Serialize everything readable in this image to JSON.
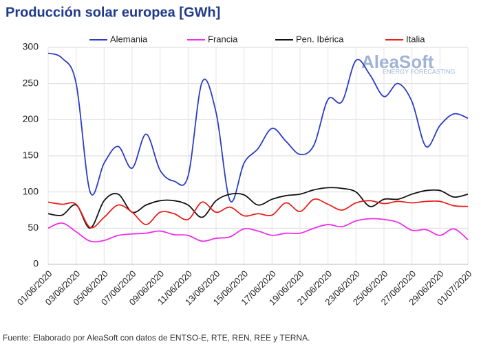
{
  "chart_data": {
    "type": "line",
    "title": "Producción solar europea [GWh]",
    "source": "Fuente: Elaborado por AleaSoft con datos de ENTSO-E, RTE, REN, REE y TERNA.",
    "watermark": [
      "AleaSoft",
      "ENERGY FORECASTING"
    ],
    "categories": [
      "01/06/2020",
      null,
      "03/06/2020",
      null,
      "05/06/2020",
      null,
      "07/06/2020",
      null,
      "09/06/2020",
      null,
      "11/06/2020",
      null,
      "13/06/2020",
      null,
      "15/06/2020",
      null,
      "17/06/2020",
      null,
      "19/06/2020",
      null,
      "21/06/2020",
      null,
      "23/06/2020",
      null,
      "25/06/2020",
      null,
      "27/06/2020",
      null,
      "29/06/2020",
      null,
      "01/07/2020"
    ],
    "series": [
      {
        "name": "Alemania",
        "color": "#2a3bc4",
        "values": [
          292,
          285,
          250,
          100,
          140,
          163,
          133,
          180,
          130,
          115,
          122,
          252,
          210,
          88,
          140,
          160,
          188,
          170,
          152,
          165,
          228,
          225,
          282,
          262,
          232,
          250,
          225,
          163,
          192,
          208,
          202
        ]
      },
      {
        "name": "Francia",
        "color": "#ee2ee8",
        "values": [
          50,
          57,
          45,
          32,
          33,
          40,
          42,
          43,
          46,
          41,
          40,
          32,
          36,
          38,
          49,
          46,
          40,
          43,
          43,
          50,
          55,
          52,
          60,
          63,
          62,
          58,
          47,
          48,
          40,
          49,
          34
        ]
      },
      {
        "name": "Pen. Ibérica",
        "color": "#111111",
        "values": [
          70,
          68,
          82,
          50,
          88,
          97,
          72,
          82,
          88,
          88,
          82,
          65,
          88,
          97,
          96,
          82,
          90,
          95,
          97,
          103,
          106,
          105,
          100,
          80,
          90,
          90,
          97,
          102,
          102,
          93,
          97
        ]
      },
      {
        "name": "Italia",
        "color": "#e8211c",
        "values": [
          86,
          83,
          83,
          51,
          65,
          82,
          72,
          55,
          72,
          70,
          62,
          86,
          72,
          79,
          67,
          70,
          68,
          85,
          73,
          90,
          83,
          75,
          85,
          88,
          84,
          87,
          85,
          87,
          87,
          81,
          80
        ]
      }
    ],
    "ylim": [
      0,
      300
    ],
    "yticks": [
      0,
      50,
      100,
      150,
      200,
      250,
      300
    ],
    "grid": true,
    "legend": "top"
  }
}
